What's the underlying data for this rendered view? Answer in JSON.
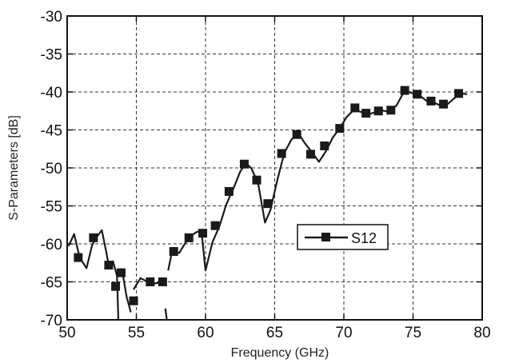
{
  "chart_data": {
    "type": "line",
    "xlabel": "Frequency (GHz)",
    "ylabel": "S-Parameters [dB]",
    "xlim": [
      50,
      80
    ],
    "ylim": [
      -70,
      -30
    ],
    "x_ticks": [
      "50",
      "55",
      "60",
      "65",
      "70",
      "75",
      "80"
    ],
    "y_ticks": [
      "-30",
      "-35",
      "-40",
      "-45",
      "-50",
      "-55",
      "-60",
      "-65",
      "-70"
    ],
    "grid": true,
    "legend_position": "middle-right",
    "series": [
      {
        "name": "S12",
        "color": "#1a1a1a",
        "marker": "square",
        "line_segments": [
          [
            [
              50.1,
              -60.3
            ],
            [
              50.5,
              -58.7
            ],
            [
              50.9,
              -61.8
            ],
            [
              51.4,
              -63.2
            ],
            [
              51.8,
              -60.2
            ],
            [
              52.1,
              -59.2
            ],
            [
              52.5,
              -58.2
            ],
            [
              52.8,
              -60.8
            ],
            [
              53.0,
              -62.8
            ]
          ],
          [
            [
              53.3,
              -62.2
            ],
            [
              53.6,
              -64.2
            ],
            [
              53.7,
              -70.0
            ]
          ],
          [
            [
              54.0,
              -63.8
            ],
            [
              54.3,
              -67.0
            ],
            [
              54.6,
              -69.0
            ]
          ],
          [
            [
              54.8,
              -66.0
            ],
            [
              55.3,
              -64.5
            ],
            [
              55.8,
              -65.0
            ],
            [
              56.4,
              -65.2
            ],
            [
              56.9,
              -65.0
            ]
          ],
          [
            [
              57.1,
              -68.5
            ],
            [
              57.2,
              -70.0
            ]
          ],
          [
            [
              57.3,
              -63.5
            ],
            [
              57.6,
              -60.8
            ],
            [
              58.1,
              -61.2
            ],
            [
              58.5,
              -60.0
            ],
            [
              58.9,
              -59.0
            ],
            [
              59.3,
              -58.5
            ],
            [
              59.7,
              -58.2
            ],
            [
              60.0,
              -63.5
            ],
            [
              60.5,
              -59.8
            ],
            [
              61.0,
              -57.7
            ],
            [
              61.5,
              -54.8
            ],
            [
              62.0,
              -52.8
            ],
            [
              62.5,
              -50.5
            ],
            [
              62.9,
              -49.4
            ],
            [
              63.3,
              -50.0
            ],
            [
              63.8,
              -52.0
            ],
            [
              64.3,
              -57.2
            ],
            [
              64.7,
              -55.5
            ],
            [
              65.2,
              -51.5
            ],
            [
              65.7,
              -48.0
            ],
            [
              66.2,
              -46.3
            ],
            [
              66.7,
              -45.4
            ],
            [
              67.2,
              -46.8
            ],
            [
              67.8,
              -48.2
            ],
            [
              68.2,
              -49.2
            ],
            [
              68.7,
              -47.8
            ],
            [
              69.2,
              -46.0
            ],
            [
              69.7,
              -44.8
            ],
            [
              70.2,
              -43.3
            ],
            [
              70.7,
              -42.4
            ],
            [
              71.2,
              -42.6
            ],
            [
              71.7,
              -43.0
            ],
            [
              72.2,
              -42.7
            ],
            [
              72.7,
              -42.4
            ],
            [
              73.2,
              -42.6
            ],
            [
              73.8,
              -41.8
            ],
            [
              74.4,
              -39.8
            ],
            [
              75.0,
              -40.2
            ],
            [
              75.5,
              -40.5
            ],
            [
              76.0,
              -41.2
            ],
            [
              76.5,
              -41.4
            ],
            [
              77.0,
              -41.8
            ],
            [
              77.5,
              -41.6
            ],
            [
              78.0,
              -40.8
            ],
            [
              78.5,
              -40.2
            ],
            [
              78.9,
              -40.3
            ]
          ]
        ],
        "markers": [
          [
            50.8,
            -61.8
          ],
          [
            51.9,
            -59.2
          ],
          [
            53.0,
            -62.8
          ],
          [
            53.5,
            -65.6
          ],
          [
            53.9,
            -63.8
          ],
          [
            54.8,
            -67.5
          ],
          [
            56.0,
            -65.0
          ],
          [
            56.9,
            -65.0
          ],
          [
            57.7,
            -61.0
          ],
          [
            58.8,
            -59.2
          ],
          [
            59.8,
            -58.6
          ],
          [
            60.7,
            -57.6
          ],
          [
            61.7,
            -53.1
          ],
          [
            62.8,
            -49.5
          ],
          [
            63.7,
            -51.6
          ],
          [
            64.5,
            -54.7
          ],
          [
            65.5,
            -48.1
          ],
          [
            66.6,
            -45.6
          ],
          [
            67.6,
            -48.2
          ],
          [
            68.6,
            -47.1
          ],
          [
            69.7,
            -44.8
          ],
          [
            70.8,
            -42.1
          ],
          [
            71.6,
            -42.8
          ],
          [
            72.5,
            -42.5
          ],
          [
            73.4,
            -42.4
          ],
          [
            74.4,
            -39.8
          ],
          [
            75.3,
            -40.3
          ],
          [
            76.3,
            -41.2
          ],
          [
            77.2,
            -41.6
          ],
          [
            78.3,
            -40.2
          ]
        ]
      }
    ]
  }
}
